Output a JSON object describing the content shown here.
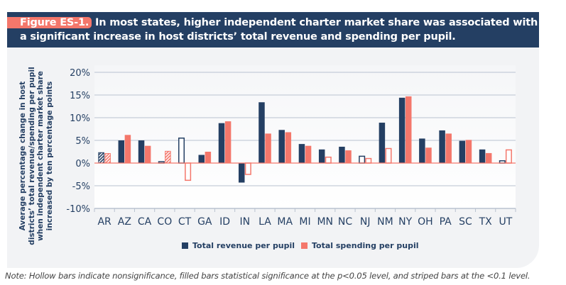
{
  "header": {
    "figure_label": "Figure ES-1.",
    "title": "In most states, higher independent charter market share was associated with a significant increase in host districts’ total revenue and spending per pupil."
  },
  "note": "Note: Hollow bars indicate nonsignificance, filled bars statistical significance at the p<0.05 level, and striped bars at the <0.1 level.",
  "colors": {
    "revenue": "#243f63",
    "spending": "#f4776b",
    "grid": "#b9c2d0"
  },
  "chart_data": {
    "type": "bar",
    "ylabel": "Average percentage change in host districts’ total revenue/spending per pupil when independent charter market share increased by ten percentage points",
    "ylim": [
      -10,
      20
    ],
    "yticks": [
      -10,
      -5,
      0,
      5,
      10,
      15,
      20
    ],
    "ytick_labels": [
      "-10%",
      "-5%",
      "0%",
      "5%",
      "10%",
      "15%",
      "20%"
    ],
    "grid": true,
    "legend_position": "bottom",
    "categories": [
      "AR",
      "AZ",
      "CA",
      "CO",
      "CT",
      "GA",
      "ID",
      "IN",
      "LA",
      "MA",
      "MI",
      "MN",
      "NC",
      "NJ",
      "NM",
      "NY",
      "OH",
      "PA",
      "SC",
      "TX",
      "UT"
    ],
    "series": [
      {
        "name": "Total revenue per pupil",
        "values": [
          2.3,
          5.0,
          5.0,
          0.3,
          5.5,
          1.8,
          8.8,
          -4.3,
          13.4,
          7.3,
          4.2,
          3.0,
          3.6,
          1.5,
          8.9,
          14.4,
          5.4,
          7.2,
          4.9,
          3.0,
          0.5
        ],
        "significance": [
          "striped",
          "filled",
          "filled",
          "hollow",
          "hollow",
          "filled",
          "filled",
          "filled",
          "filled",
          "filled",
          "filled",
          "filled",
          "filled",
          "hollow",
          "filled",
          "filled",
          "filled",
          "filled",
          "filled",
          "filled",
          "hollow"
        ]
      },
      {
        "name": "Total spending per pupil",
        "values": [
          2.1,
          6.2,
          3.8,
          2.6,
          -3.8,
          2.5,
          9.2,
          -2.5,
          6.5,
          6.8,
          3.8,
          1.3,
          2.8,
          1.0,
          3.2,
          14.7,
          3.4,
          6.5,
          5.1,
          2.2,
          2.9
        ],
        "significance": [
          "striped",
          "filled",
          "filled",
          "striped",
          "hollow",
          "filled",
          "filled",
          "hollow",
          "filled",
          "filled",
          "filled",
          "hollow",
          "filled",
          "hollow",
          "hollow",
          "filled",
          "filled",
          "filled",
          "filled",
          "filled",
          "hollow"
        ]
      }
    ]
  }
}
